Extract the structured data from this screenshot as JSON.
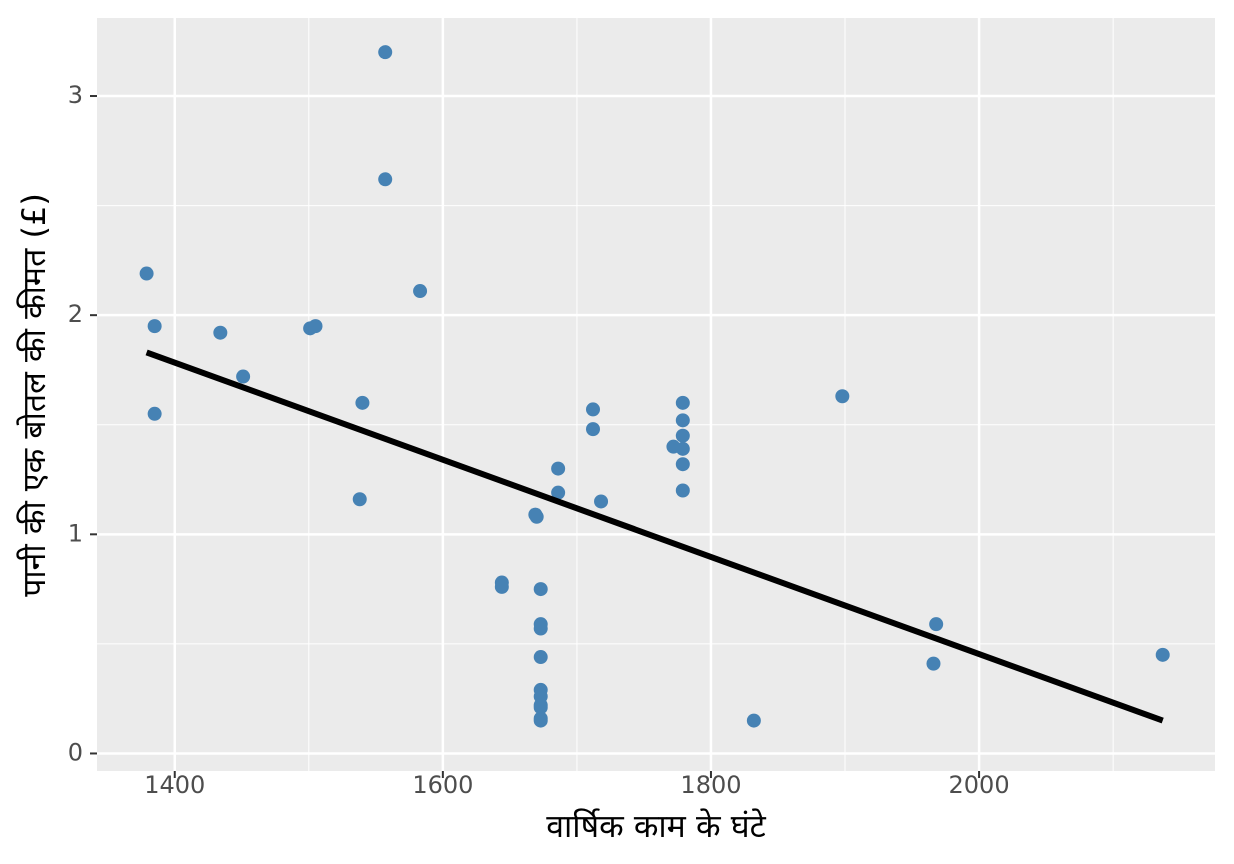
{
  "chart_data": {
    "type": "scatter",
    "x_label": "वार्षिक काम के घंटे",
    "y_label": "पानी की एक बोतल की कीमत (£)",
    "xlim": [
      1342,
      2176
    ],
    "ylim": [
      -0.08,
      3.356
    ],
    "xticks": [
      1400,
      1600,
      1800,
      2000
    ],
    "yticks": [
      0,
      1,
      2,
      3
    ],
    "minor_xticks": [
      1500,
      1700,
      1900,
      2100
    ],
    "minor_yticks": [
      0.5,
      1.5,
      2.5
    ],
    "grid": true,
    "color": "#4682b4",
    "x": [
      1379,
      1385,
      1385,
      1434,
      1451,
      1501,
      1505,
      1540,
      1538,
      1557,
      1557,
      1583,
      1644,
      1644,
      1669,
      1670,
      1673,
      1673,
      1673,
      1673,
      1673,
      1673,
      1673,
      1673,
      1673,
      1673,
      1686,
      1686,
      1712,
      1712,
      1718,
      1772,
      1779,
      1779,
      1779,
      1779,
      1779,
      1779,
      1832,
      1898,
      1968,
      1966,
      2137
    ],
    "values": [
      2.19,
      1.95,
      1.55,
      1.92,
      1.72,
      1.94,
      1.95,
      1.6,
      1.16,
      3.2,
      2.62,
      2.11,
      0.78,
      0.76,
      1.09,
      1.08,
      0.75,
      0.59,
      0.57,
      0.44,
      0.29,
      0.26,
      0.22,
      0.21,
      0.16,
      0.15,
      1.3,
      1.19,
      1.57,
      1.48,
      1.15,
      1.4,
      1.6,
      1.52,
      1.45,
      1.39,
      1.32,
      1.2,
      0.15,
      1.63,
      0.59,
      0.41,
      0.45
    ],
    "fit": {
      "color": "#000000",
      "x": [
        1379,
        2137
      ],
      "values": [
        1.83,
        0.15
      ]
    }
  }
}
